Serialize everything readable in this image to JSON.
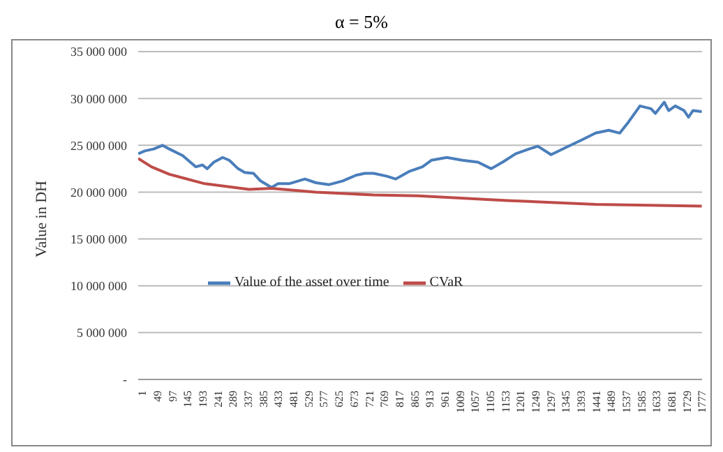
{
  "chart_data": {
    "type": "line",
    "title": "α = 5%",
    "ylabel": "Value in DH",
    "xlim": [
      1,
      1790
    ],
    "xticks": [
      1,
      49,
      97,
      145,
      193,
      241,
      289,
      337,
      385,
      433,
      481,
      529,
      577,
      625,
      673,
      721,
      769,
      817,
      865,
      913,
      961,
      1009,
      1057,
      1105,
      1153,
      1201,
      1249,
      1297,
      1345,
      1393,
      1441,
      1489,
      1537,
      1585,
      1633,
      1681,
      1729,
      1777
    ],
    "ylim": [
      0,
      35000000
    ],
    "yticks": [
      {
        "value": 0,
        "label": "-"
      },
      {
        "value": 5000000,
        "label": "5 000 000"
      },
      {
        "value": 10000000,
        "label": "10 000 000"
      },
      {
        "value": 15000000,
        "label": "15 000 000"
      },
      {
        "value": 20000000,
        "label": "20 000 000"
      },
      {
        "value": 25000000,
        "label": "25 000 000"
      },
      {
        "value": 30000000,
        "label": "30 000 000"
      },
      {
        "value": 35000000,
        "label": "35 000 000"
      }
    ],
    "grid": "y",
    "legend": "center",
    "marker": "none",
    "series": [
      {
        "name": "Value of the asset over time",
        "color": "#4a7ebb",
        "x": [
          1,
          22,
          50,
          78,
          100,
          142,
          184,
          205,
          220,
          241,
          269,
          290,
          318,
          339,
          367,
          389,
          424,
          445,
          480,
          530,
          565,
          607,
          650,
          692,
          720,
          748,
          790,
          818,
          860,
          903,
          931,
          980,
          1030,
          1079,
          1121,
          1157,
          1199,
          1241,
          1269,
          1311,
          1354,
          1410,
          1452,
          1494,
          1529,
          1557,
          1593,
          1628,
          1642,
          1670,
          1684,
          1705,
          1733,
          1747,
          1761,
          1789
        ],
        "values": [
          24100000,
          24400000,
          24600000,
          25000000,
          24600000,
          23900000,
          22700000,
          22900000,
          22500000,
          23200000,
          23700000,
          23400000,
          22500000,
          22100000,
          22000000,
          21200000,
          20500000,
          20900000,
          20900000,
          21400000,
          21000000,
          20800000,
          21200000,
          21800000,
          22000000,
          22000000,
          21700000,
          21400000,
          22200000,
          22700000,
          23400000,
          23700000,
          23400000,
          23200000,
          22500000,
          23200000,
          24100000,
          24600000,
          24900000,
          24000000,
          24700000,
          25600000,
          26300000,
          26600000,
          26300000,
          27500000,
          29200000,
          28900000,
          28400000,
          29600000,
          28700000,
          29200000,
          28700000,
          28000000,
          28700000,
          28600000
        ]
      },
      {
        "name": "CVaR",
        "color": "#be4b48",
        "x": [
          1,
          43,
          100,
          212,
          353,
          424,
          565,
          748,
          889,
          1171,
          1452,
          1789
        ],
        "values": [
          23600000,
          22700000,
          21900000,
          20900000,
          20300000,
          20400000,
          20000000,
          19700000,
          19600000,
          19100000,
          18700000,
          18500000
        ]
      }
    ]
  }
}
